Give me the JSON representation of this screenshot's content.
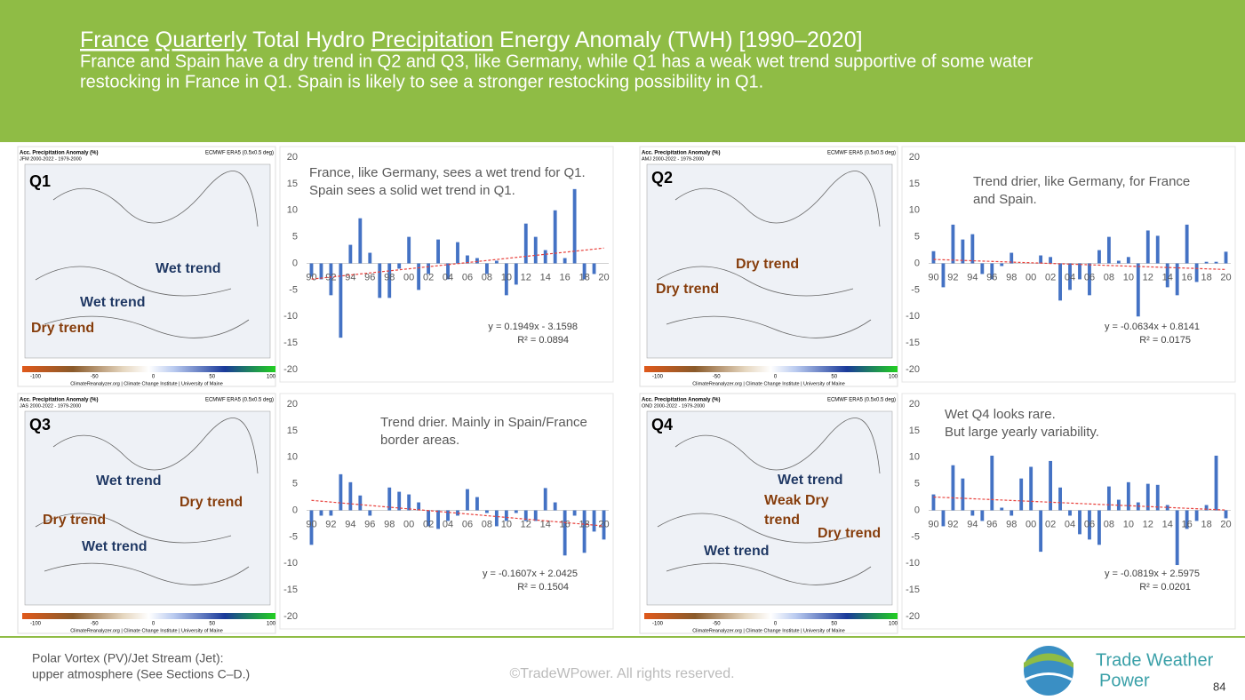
{
  "header": {
    "title_parts": [
      "France",
      "Quarterly",
      "Total Hydro",
      "Precipitation",
      "Energy Anomaly (TWH) [1990–2020]"
    ],
    "subtitle": [
      "France and Spain have a dry trend in Q2 and Q3, like Germany, while Q1 has a weak wet trend supportive of some water",
      "restocking in France in Q1. Spain is likely to see a stronger restocking possibility in Q1."
    ]
  },
  "maps": [
    {
      "title": "Acc. Precipitation Anomaly (%)",
      "period": "JFM 2000-2022 - 1979-2000",
      "dataset": "ECMWF ERA5 (0.5x0.5 deg)",
      "colorbar_ticks": [
        -100,
        -50,
        0,
        50,
        100
      ],
      "source": "ClimateReanalyzer.org | Climate Change Institute | University of Maine",
      "labels": [
        {
          "text": "Q1",
          "color": "#000000"
        },
        {
          "text": "Wet trend",
          "color": "#1f3864"
        },
        {
          "text": "Wet trend",
          "color": "#1f3864"
        },
        {
          "text": "Dry trend",
          "color": "#843c0c"
        }
      ]
    },
    {
      "title": "Acc. Precipitation Anomaly (%)",
      "period": "AMJ 2000-2022 - 1979-2000",
      "dataset": "ECMWF ERA5 (0.5x0.5 deg)",
      "colorbar_ticks": [
        -100,
        -50,
        0,
        50,
        100
      ],
      "source": "ClimateReanalyzer.org | Climate Change Institute | University of Maine",
      "labels": [
        {
          "text": "Q2",
          "color": "#000000"
        },
        {
          "text": "Dry trend",
          "color": "#843c0c"
        },
        {
          "text": "Dry trend",
          "color": "#843c0c"
        }
      ]
    },
    {
      "title": "Acc. Precipitation Anomaly (%)",
      "period": "JAS 2000-2022 - 1979-2000",
      "dataset": "ECMWF ERA5 (0.5x0.5 deg)",
      "colorbar_ticks": [
        -100,
        -50,
        0,
        50,
        100
      ],
      "source": "ClimateReanalyzer.org | Climate Change Institute | University of Maine",
      "labels": [
        {
          "text": "Q3",
          "color": "#000000"
        },
        {
          "text": "Wet trend",
          "color": "#1f3864"
        },
        {
          "text": "Dry trend",
          "color": "#843c0c"
        },
        {
          "text": "Dry trend",
          "color": "#843c0c"
        },
        {
          "text": "Wet trend",
          "color": "#1f3864"
        }
      ]
    },
    {
      "title": "Acc. Precipitation Anomaly (%)",
      "period": "OND 2000-2022 - 1979-2000",
      "dataset": "ECMWF ERA5 (0.5x0.5 deg)",
      "colorbar_ticks": [
        -100,
        -50,
        0,
        50,
        100
      ],
      "source": "ClimateReanalyzer.org | Climate Change Institute | University of Maine",
      "labels": [
        {
          "text": "Q4",
          "color": "#000000"
        },
        {
          "text": "Wet trend",
          "color": "#1f3864"
        },
        {
          "text": "Weak Dry",
          "color": "#843c0c"
        },
        {
          "text": "trend",
          "color": "#843c0c"
        },
        {
          "text": "Dry trend",
          "color": "#843c0c"
        },
        {
          "text": "Wet trend",
          "color": "#1f3864"
        }
      ]
    }
  ],
  "chart_data": [
    {
      "type": "bar",
      "annotation": [
        "France, like Germany, sees a wet trend for Q1.",
        "Spain sees a solid wet trend in Q1."
      ],
      "categories": [
        "90",
        null,
        "92",
        null,
        "94",
        null,
        "96",
        null,
        "98",
        null,
        "00",
        null,
        "02",
        null,
        "04",
        null,
        "06",
        null,
        "08",
        null,
        "10",
        null,
        "12",
        null,
        "14",
        null,
        "16",
        null,
        "18",
        null,
        "20"
      ],
      "values": [
        -2.5,
        -3,
        -6,
        -14,
        3.5,
        8.5,
        2,
        -6.5,
        -6.5,
        -1,
        5,
        -5,
        -2,
        4.5,
        -3,
        4,
        1.5,
        1,
        -2,
        0.5,
        -6,
        -4,
        7.5,
        5,
        2.5,
        10,
        1,
        14,
        -3,
        -2,
        0
      ],
      "color": "#4472c4",
      "ylim": [
        -20,
        20
      ],
      "yticks": [
        -20,
        -15,
        -10,
        -5,
        0,
        5,
        10,
        15,
        20
      ],
      "trendline": {
        "slope": 0.1949,
        "intercept": -3.1598,
        "color": "#e8413c",
        "label": "y = 0.1949x - 3.1598"
      },
      "r2_label": "R² = 0.0894"
    },
    {
      "type": "bar",
      "annotation": [
        "Trend drier, like Germany, for France",
        "and Spain."
      ],
      "categories": [
        "90",
        null,
        "92",
        null,
        "94",
        null,
        "96",
        null,
        "98",
        null,
        "00",
        null,
        "02",
        null,
        "04",
        null,
        "06",
        null,
        "08",
        null,
        "10",
        null,
        "12",
        null,
        "14",
        null,
        "16",
        null,
        "18",
        null,
        "20"
      ],
      "values": [
        2.3,
        -4.5,
        7.3,
        4.5,
        5.5,
        -2,
        -3,
        -0.5,
        2,
        0,
        0,
        1.5,
        1.2,
        -7,
        -5,
        -3,
        -6,
        2.5,
        5,
        0.5,
        1.2,
        -10,
        6.2,
        5.2,
        -4.5,
        -6,
        7.3,
        -3.5,
        0.3,
        0.3,
        2.2
      ],
      "color": "#4472c4",
      "ylim": [
        -20,
        20
      ],
      "yticks": [
        -20,
        -15,
        -10,
        -5,
        0,
        5,
        10,
        15,
        20
      ],
      "trendline": {
        "slope": -0.0634,
        "intercept": 0.8141,
        "color": "#e8413c",
        "label": "y = -0.0634x + 0.8141"
      },
      "r2_label": "R² = 0.0175"
    },
    {
      "type": "bar",
      "annotation": [
        "Trend drier. Mainly in Spain/France",
        "border areas."
      ],
      "categories": [
        "90",
        null,
        "92",
        null,
        "94",
        null,
        "96",
        null,
        "98",
        null,
        "00",
        null,
        "02",
        null,
        "04",
        null,
        "06",
        null,
        "08",
        null,
        "10",
        null,
        "12",
        null,
        "14",
        null,
        "16",
        null,
        "18",
        null,
        "20"
      ],
      "values": [
        -6.5,
        -1,
        -1,
        6.8,
        5.3,
        2.8,
        -1,
        0,
        4.3,
        3.5,
        3,
        1.5,
        -3,
        -3.5,
        -2,
        -1,
        4,
        2.5,
        -0.5,
        -3,
        -2,
        -0.5,
        -2,
        -2,
        4.2,
        1.5,
        -8.5,
        -1,
        -8,
        -4,
        -5.5
      ],
      "color": "#4472c4",
      "ylim": [
        -20,
        20
      ],
      "yticks": [
        -20,
        -15,
        -10,
        -5,
        0,
        5,
        10,
        15,
        20
      ],
      "trendline": {
        "slope": -0.1607,
        "intercept": 2.0425,
        "color": "#e8413c",
        "label": "y = -0.1607x + 2.0425"
      },
      "r2_label": "R² = 0.1504"
    },
    {
      "type": "bar",
      "annotation": [
        "Wet Q4 looks rare.",
        "But large yearly variability."
      ],
      "categories": [
        "90",
        null,
        "92",
        null,
        "94",
        null,
        "96",
        null,
        "98",
        null,
        "00",
        null,
        "02",
        null,
        "04",
        null,
        "06",
        null,
        "08",
        null,
        "10",
        null,
        "12",
        null,
        "14",
        null,
        "16",
        null,
        "18",
        null,
        "20"
      ],
      "values": [
        3,
        -3,
        8.5,
        6,
        -1,
        -2,
        10.3,
        0.5,
        -1,
        6,
        8.2,
        -7.8,
        9.3,
        4.3,
        -1,
        -4.5,
        -5.5,
        -6.5,
        4.5,
        2,
        5.3,
        1.5,
        5,
        4.8,
        1,
        -10.3,
        -3.5,
        -2,
        1,
        10.3,
        -1.5
      ],
      "color": "#4472c4",
      "ylim": [
        -20,
        20
      ],
      "yticks": [
        -20,
        -15,
        -10,
        -5,
        0,
        5,
        10,
        15,
        20
      ],
      "trendline": {
        "slope": -0.0819,
        "intercept": 2.5975,
        "color": "#e8413c",
        "label": "y = -0.0819x + 2.5975"
      },
      "r2_label": "R² = 0.0201"
    }
  ],
  "footer": {
    "note": [
      "Polar Vortex (PV)/Jet Stream (Jet):",
      "upper atmosphere (See Sections C–D.)"
    ],
    "copyright": "©TradeWPower. All rights reserved.",
    "brand": [
      "Trade Weather",
      "Power"
    ],
    "page": "84"
  }
}
